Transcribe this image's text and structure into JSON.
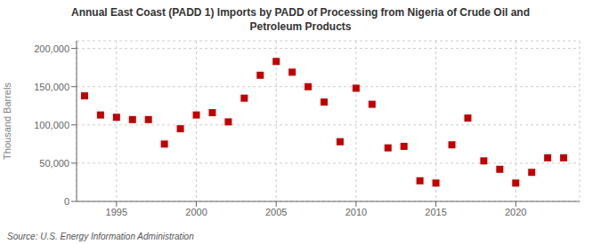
{
  "chart_data": {
    "type": "scatter",
    "title": "Annual East Coast (PADD 1) Imports by PADD of Processing from Nigeria of Crude Oil and\nPetroleum Products",
    "ylabel": "Thousand Barrels",
    "source": "Source: U.S. Energy Information Administration",
    "x": [
      1993,
      1994,
      1995,
      1996,
      1997,
      1998,
      1999,
      2000,
      2001,
      2002,
      2003,
      2004,
      2005,
      2006,
      2007,
      2008,
      2009,
      2010,
      2011,
      2012,
      2013,
      2014,
      2015,
      2016,
      2017,
      2018,
      2019,
      2020,
      2021,
      2022,
      2023
    ],
    "values": [
      138000,
      113000,
      110000,
      107000,
      107000,
      75000,
      95000,
      113000,
      116000,
      104000,
      135000,
      165000,
      183000,
      169000,
      150000,
      130000,
      78000,
      148000,
      127000,
      70000,
      72000,
      27000,
      24000,
      74000,
      109000,
      53000,
      42000,
      24000,
      38000,
      57000,
      57000
    ],
    "color": "#c00000",
    "marker": "square",
    "grid": true,
    "xlim": [
      1992.5,
      2024
    ],
    "xticks": [
      1995,
      2000,
      2005,
      2010,
      2015,
      2020
    ],
    "ylim": [
      0,
      210000
    ],
    "yticks": [
      0,
      {
        "value": 50000,
        "label": "50,000"
      },
      {
        "value": 100000,
        "label": "100,000"
      },
      {
        "value": 150000,
        "label": "150,000"
      },
      {
        "value": 200000,
        "label": "200,000"
      }
    ]
  }
}
